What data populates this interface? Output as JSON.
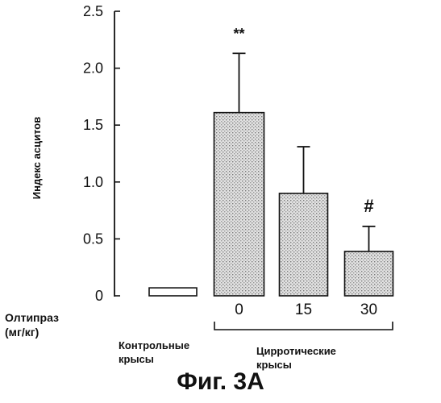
{
  "chart_data": {
    "type": "bar",
    "title": "",
    "ylabel": "Индекс асцитов",
    "ylim": [
      0,
      2.5
    ],
    "yticks": [
      {
        "value": 0,
        "label": "0"
      },
      {
        "value": 0.5,
        "label": "0.5"
      },
      {
        "value": 1.0,
        "label": "1.0"
      },
      {
        "value": 1.5,
        "label": "1.5"
      },
      {
        "value": 2.0,
        "label": "2.0"
      },
      {
        "value": 2.5,
        "label": "2.5"
      }
    ],
    "categories": [
      "Контрольные крысы",
      "0",
      "15",
      "30"
    ],
    "values": [
      0.07,
      1.61,
      0.9,
      0.39
    ],
    "errors": [
      0.0,
      0.52,
      0.41,
      0.22
    ],
    "annotations": [
      "",
      "**",
      "",
      "#"
    ],
    "fill_color": "#dedede",
    "bar_stroke": "#111111"
  },
  "labels": {
    "dose_name": "Олтипраз",
    "dose_unit": "(мг/кг)",
    "control_line1": "Контрольные",
    "control_line2": "крысы",
    "cirrhotic_line1": "Цирротические",
    "cirrhotic_line2": "крысы"
  },
  "caption": "Фиг. 3А"
}
